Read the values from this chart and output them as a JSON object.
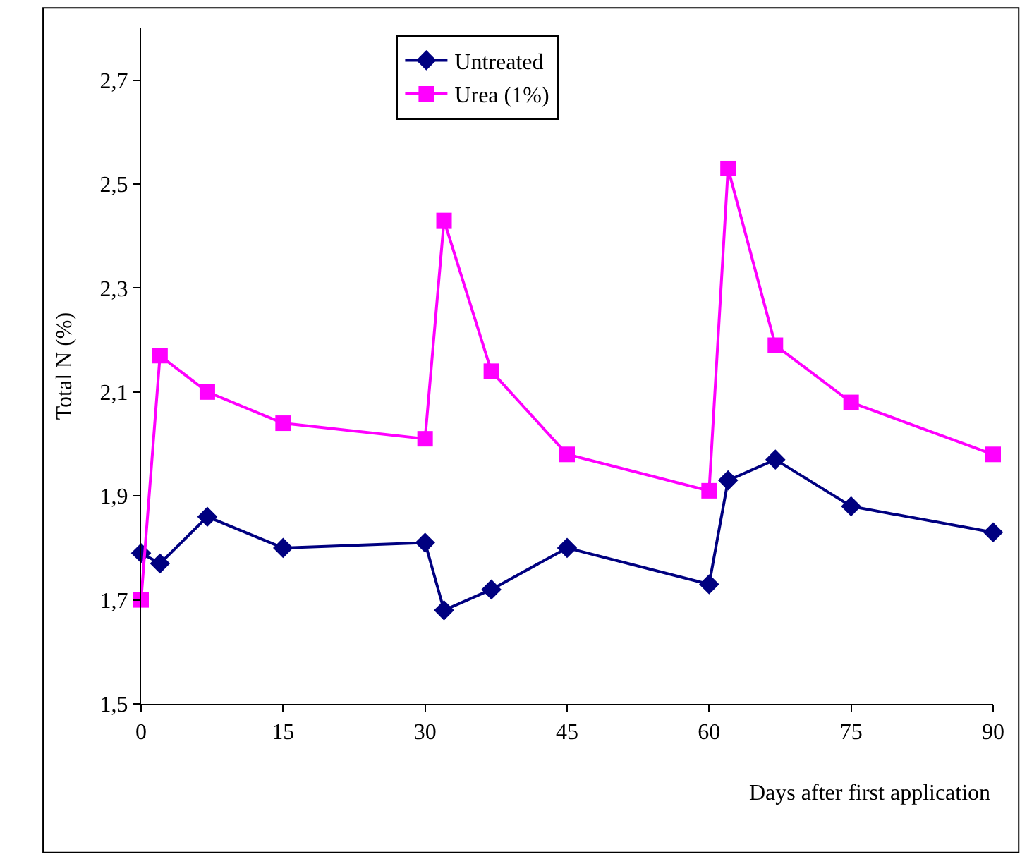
{
  "chart_data": {
    "type": "line",
    "xlabel": "Days after first application",
    "ylabel": "Total N (%)",
    "xlim": [
      0,
      90
    ],
    "xticks": [
      0,
      15,
      30,
      45,
      60,
      75,
      90
    ],
    "ylim": [
      1.5,
      2.8
    ],
    "yticks": [
      {
        "value": 1.5,
        "label": "1,5"
      },
      {
        "value": 1.7,
        "label": "1,7"
      },
      {
        "value": 1.9,
        "label": "1,9"
      },
      {
        "value": 2.1,
        "label": "2,1"
      },
      {
        "value": 2.3,
        "label": "2,3"
      },
      {
        "value": 2.5,
        "label": "2,5"
      },
      {
        "value": 2.7,
        "label": "2,7"
      }
    ],
    "grid": false,
    "legend": "top",
    "line_style": "solid",
    "series": [
      {
        "name": "Untreated",
        "color": "#000080",
        "marker": "diamond",
        "x": [
          0,
          2,
          7,
          15,
          30,
          32,
          37,
          45,
          60,
          62,
          67,
          75,
          90
        ],
        "values": [
          1.79,
          1.77,
          1.86,
          1.8,
          1.81,
          1.68,
          1.72,
          1.8,
          1.73,
          1.93,
          1.97,
          1.88,
          1.83
        ]
      },
      {
        "name": "Urea (1%)",
        "color": "#ff00ff",
        "marker": "square",
        "x": [
          0,
          2,
          7,
          15,
          30,
          32,
          37,
          45,
          60,
          62,
          67,
          75,
          90
        ],
        "values": [
          1.7,
          2.17,
          2.1,
          2.04,
          2.01,
          2.43,
          2.14,
          1.98,
          1.91,
          2.53,
          2.19,
          2.08,
          1.98
        ]
      }
    ]
  }
}
